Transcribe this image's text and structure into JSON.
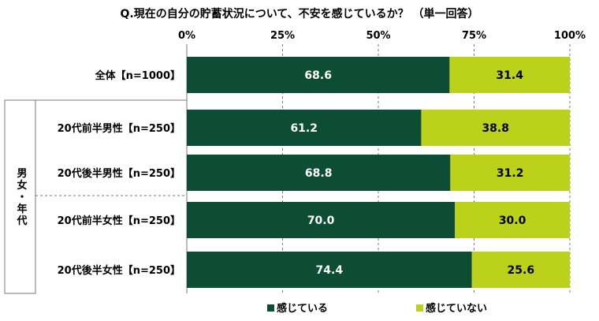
{
  "chart_data": {
    "type": "bar",
    "orientation": "horizontal",
    "stacked": true,
    "title": "Q.現在の自分の貯蓄状況について、不安を感じているか？ （単一回答）",
    "xlim": [
      0,
      100
    ],
    "x_ticks": [
      "0%",
      "25%",
      "50%",
      "75%",
      "100%"
    ],
    "categories": [
      "全体【n=1000】",
      "20代前半男性【n=250】",
      "20代後半男性【n=250】",
      "20代前半女性【n=250】",
      "20代後半女性【n=250】"
    ],
    "group_label": "男女・年代",
    "series": [
      {
        "name": "感じている",
        "color": "#0d4d36",
        "values": [
          68.6,
          61.2,
          68.8,
          70.0,
          74.4
        ],
        "labels": [
          "68.6",
          "61.2",
          "68.8",
          "70.0",
          "74.4"
        ]
      },
      {
        "name": "感じていない",
        "color": "#bcd11a",
        "values": [
          31.4,
          38.8,
          31.2,
          30.0,
          25.6
        ],
        "labels": [
          "31.4",
          "38.8",
          "31.2",
          "30.0",
          "25.6"
        ]
      }
    ],
    "legend_position": "bottom",
    "grid": true
  }
}
